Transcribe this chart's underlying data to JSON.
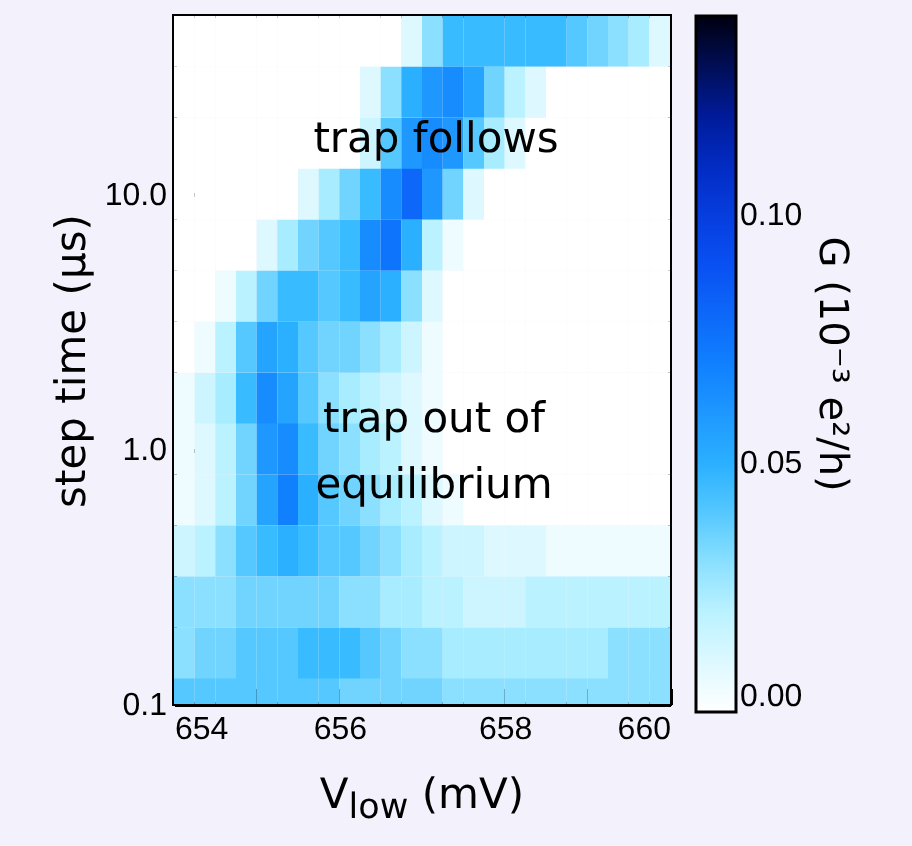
{
  "chart_data": {
    "type": "heatmap",
    "xlabel": "V$_{low}$ (mV)",
    "ylabel": "step time (μs)",
    "clabel": "G (10⁻³ e²/h)",
    "x": [
      654.125,
      654.375,
      654.625,
      654.875,
      655.125,
      655.375,
      655.625,
      655.875,
      656.125,
      656.375,
      656.625,
      656.875,
      657.125,
      657.375,
      657.625,
      657.875,
      658.125,
      658.375,
      658.625,
      658.875,
      659.125,
      659.375,
      659.625,
      659.875
    ],
    "y": [
      39.8,
      25.1,
      15.8,
      10.0,
      6.31,
      3.98,
      2.51,
      1.58,
      1.0,
      0.631,
      0.398,
      0.251,
      0.158,
      0.1
    ],
    "cells": [
      [
        0,
        0,
        0,
        0,
        0,
        0,
        0,
        0,
        0,
        0,
        0,
        0.01,
        0.03,
        0.045,
        0.045,
        0.045,
        0.045,
        0.045,
        0.045,
        0.04,
        0.035,
        0.03,
        0.025,
        0.01
      ],
      [
        0,
        0,
        0,
        0,
        0,
        0,
        0,
        0,
        0,
        0.01,
        0.03,
        0.05,
        0.06,
        0.065,
        0.055,
        0.035,
        0.02,
        0.01,
        0,
        0,
        0,
        0,
        0,
        0
      ],
      [
        0,
        0,
        0,
        0,
        0,
        0,
        0,
        0,
        0,
        0.015,
        0.04,
        0.06,
        0.065,
        0.06,
        0.04,
        0.025,
        0.01,
        0,
        0,
        0,
        0,
        0,
        0,
        0
      ],
      [
        0,
        0,
        0,
        0,
        0,
        0,
        0.01,
        0.025,
        0.035,
        0.045,
        0.065,
        0.08,
        0.06,
        0.035,
        0.01,
        0,
        0,
        0,
        0,
        0,
        0,
        0,
        0,
        0
      ],
      [
        0,
        0,
        0,
        0,
        0.01,
        0.025,
        0.035,
        0.04,
        0.045,
        0.065,
        0.075,
        0.05,
        0.02,
        0.005,
        0,
        0,
        0,
        0,
        0,
        0,
        0,
        0,
        0,
        0
      ],
      [
        0,
        0,
        0.005,
        0.02,
        0.035,
        0.045,
        0.045,
        0.04,
        0.045,
        0.055,
        0.05,
        0.03,
        0.01,
        0,
        0,
        0,
        0,
        0,
        0,
        0,
        0,
        0,
        0,
        0
      ],
      [
        0,
        0.005,
        0.02,
        0.04,
        0.055,
        0.05,
        0.04,
        0.035,
        0.035,
        0.03,
        0.025,
        0.015,
        0.005,
        0,
        0,
        0,
        0,
        0,
        0,
        0,
        0,
        0,
        0,
        0
      ],
      [
        0.005,
        0.015,
        0.025,
        0.045,
        0.065,
        0.055,
        0.04,
        0.03,
        0.025,
        0.02,
        0.015,
        0.01,
        0.005,
        0,
        0,
        0,
        0,
        0,
        0,
        0,
        0,
        0,
        0,
        0
      ],
      [
        0.005,
        0.01,
        0.02,
        0.035,
        0.06,
        0.065,
        0.045,
        0.035,
        0.03,
        0.025,
        0.02,
        0.01,
        0.005,
        0,
        0,
        0,
        0,
        0,
        0,
        0,
        0,
        0,
        0,
        0
      ],
      [
        0.005,
        0.01,
        0.02,
        0.035,
        0.055,
        0.07,
        0.05,
        0.04,
        0.035,
        0.03,
        0.025,
        0.02,
        0.01,
        0.005,
        0,
        0,
        0,
        0,
        0,
        0,
        0,
        0,
        0,
        0
      ],
      [
        0.015,
        0.02,
        0.03,
        0.04,
        0.045,
        0.05,
        0.045,
        0.04,
        0.04,
        0.035,
        0.03,
        0.025,
        0.02,
        0.015,
        0.015,
        0.01,
        0.01,
        0.01,
        0.005,
        0.005,
        0.005,
        0.005,
        0.005,
        0.005
      ],
      [
        0.03,
        0.03,
        0.03,
        0.035,
        0.035,
        0.035,
        0.035,
        0.035,
        0.03,
        0.03,
        0.025,
        0.025,
        0.02,
        0.02,
        0.015,
        0.015,
        0.015,
        0.02,
        0.02,
        0.02,
        0.02,
        0.02,
        0.02,
        0.02
      ],
      [
        0.03,
        0.035,
        0.035,
        0.04,
        0.04,
        0.04,
        0.045,
        0.045,
        0.045,
        0.04,
        0.035,
        0.03,
        0.03,
        0.025,
        0.025,
        0.025,
        0.025,
        0.025,
        0.025,
        0.025,
        0.025,
        0.03,
        0.03,
        0.03
      ],
      [
        0.04,
        0.04,
        0.04,
        0.04,
        0.04,
        0.04,
        0.04,
        0.04,
        0.035,
        0.035,
        0.035,
        0.035,
        0.035,
        0.03,
        0.03,
        0.03,
        0.03,
        0.03,
        0.03,
        0.03,
        0.03,
        0.03,
        0.03,
        0.03
      ]
    ],
    "xlim": [
      654,
      660
    ],
    "xticks": [
      654,
      {
        "value": 655,
        "label": null
      },
      656,
      {
        "value": 657,
        "label": null
      },
      658,
      {
        "value": 659,
        "label": null
      },
      660
    ],
    "ylim": [
      0.1,
      50
    ],
    "yticks": [
      0.1,
      {
        "value": 1,
        "label": "1.0"
      },
      {
        "value": 10,
        "label": "10.0"
      }
    ],
    "log": "y",
    "clim": [
      0,
      0.14
    ],
    "cticks": [
      {
        "value": 0,
        "label": "0.00"
      },
      0.05,
      {
        "value": 0.1,
        "label": "0.10"
      }
    ],
    "annotations": [
      "trap follows",
      "trap out of\nequilibrium"
    ]
  }
}
